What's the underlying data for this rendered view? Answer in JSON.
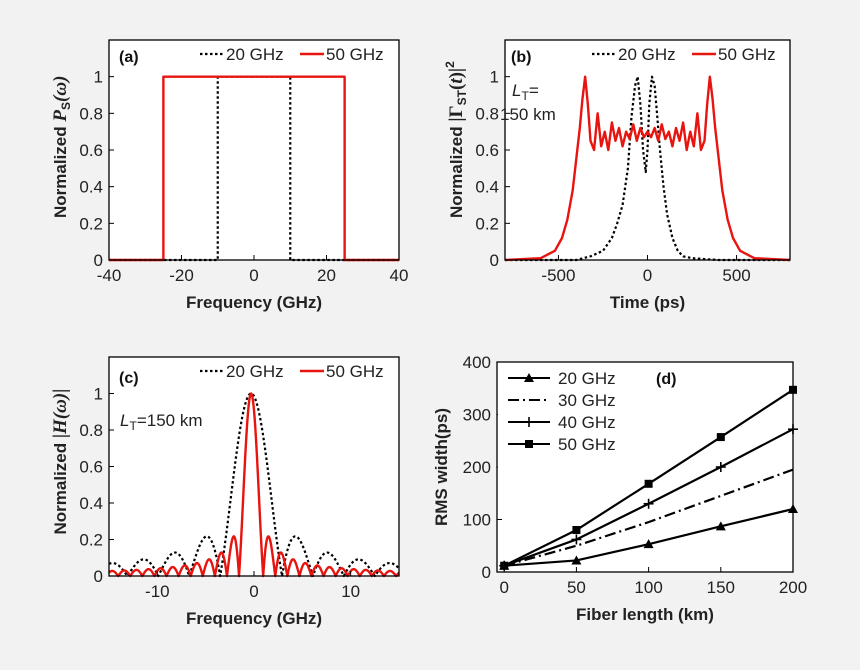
{
  "chart_data": [
    {
      "type": "line",
      "panel_label": "(a)",
      "title": "",
      "xlabel": "Frequency (GHz)",
      "ylabel_prefix": "Normalized",
      "ylabel_math": "P_S(ω)",
      "xlim": [
        -40,
        40
      ],
      "ylim": [
        0,
        1.2
      ],
      "xticks": [
        -40,
        -20,
        0,
        20,
        40
      ],
      "yticks": [
        0,
        0.2,
        0.4,
        0.6,
        0.8,
        1
      ],
      "legend": [
        "20 GHz",
        "50 GHz"
      ],
      "series": [
        {
          "name": "20 GHz",
          "style": "dotted",
          "color": "#000000",
          "x": [
            -40,
            -10,
            -10,
            10,
            10,
            40
          ],
          "y": [
            0,
            0,
            1,
            1,
            0,
            0
          ]
        },
        {
          "name": "50 GHz",
          "style": "solid",
          "color": "#e8140f",
          "x": [
            -40,
            -25,
            -25,
            25,
            25,
            40
          ],
          "y": [
            0,
            0,
            1,
            1,
            0,
            0
          ]
        }
      ]
    },
    {
      "type": "line",
      "panel_label": "(b)",
      "annotation_var": "L",
      "annotation_sub": "T",
      "annotation_rest": "=",
      "annotation_line2": "150 km",
      "xlabel": "Time (ps)",
      "ylabel_prefix": "Normalized",
      "ylabel_math": "|Γ_ST(t)|²",
      "xlim": [
        -800,
        800
      ],
      "ylim": [
        0,
        1.2
      ],
      "xticks": [
        -500,
        0,
        500
      ],
      "yticks": [
        0,
        0.2,
        0.4,
        0.6,
        0.8,
        1
      ],
      "legend": [
        "20 GHz",
        "50 GHz"
      ],
      "series": [
        {
          "name": "20 GHz",
          "style": "dotted",
          "color": "#000000",
          "x": [
            -800,
            -400,
            -320,
            -250,
            -200,
            -170,
            -140,
            -110,
            -90,
            -70,
            -55,
            -40,
            -25,
            -10,
            0,
            10,
            25,
            40,
            55,
            70,
            90,
            110,
            140,
            170,
            200,
            250,
            320,
            400,
            800
          ],
          "y": [
            0,
            0,
            0.02,
            0.05,
            0.12,
            0.2,
            0.3,
            0.5,
            0.78,
            0.95,
            1.0,
            0.85,
            0.6,
            0.48,
            0.6,
            0.85,
            1.0,
            0.95,
            0.78,
            0.6,
            0.4,
            0.25,
            0.12,
            0.05,
            0.02,
            0.01,
            0.005,
            0,
            0
          ]
        },
        {
          "name": "50 GHz",
          "style": "solid",
          "color": "#e8140f",
          "x": [
            -800,
            -600,
            -520,
            -480,
            -450,
            -420,
            -400,
            -380,
            -365,
            -350,
            -335,
            -320,
            -300,
            -280,
            -260,
            -240,
            -220,
            -200,
            -180,
            -160,
            -140,
            -120,
            -100,
            -80,
            -60,
            -40,
            -20,
            0,
            20,
            40,
            60,
            80,
            100,
            120,
            140,
            160,
            180,
            200,
            220,
            240,
            260,
            280,
            300,
            320,
            335,
            350,
            365,
            380,
            400,
            420,
            450,
            480,
            520,
            600,
            800
          ],
          "y": [
            0,
            0.01,
            0.05,
            0.12,
            0.22,
            0.38,
            0.55,
            0.72,
            0.88,
            1.0,
            0.85,
            0.65,
            0.6,
            0.8,
            0.62,
            0.7,
            0.6,
            0.75,
            0.65,
            0.72,
            0.62,
            0.7,
            0.66,
            0.74,
            0.65,
            0.72,
            0.67,
            0.7,
            0.67,
            0.72,
            0.65,
            0.74,
            0.66,
            0.7,
            0.62,
            0.72,
            0.65,
            0.75,
            0.6,
            0.7,
            0.62,
            0.8,
            0.6,
            0.65,
            0.85,
            1.0,
            0.88,
            0.72,
            0.55,
            0.38,
            0.22,
            0.12,
            0.05,
            0.01,
            0
          ]
        }
      ]
    },
    {
      "type": "line",
      "panel_label": "(c)",
      "annotation_var": "L",
      "annotation_sub": "T",
      "annotation_rest": "=150 km",
      "xlabel": "Frequency (GHz)",
      "ylabel_prefix": "Normalized",
      "ylabel_math": "|H(ω)|",
      "xlim": [
        -15,
        15
      ],
      "ylim": [
        0,
        1.2
      ],
      "xticks": [
        -10,
        0,
        10
      ],
      "yticks": [
        0,
        0.2,
        0.4,
        0.6,
        0.8,
        1
      ],
      "legend": [
        "20 GHz",
        "50 GHz"
      ],
      "series": [
        {
          "name": "20 GHz",
          "style": "dotted",
          "color": "#000000",
          "fn": "sinc",
          "width": 3.2,
          "center": -0.3
        },
        {
          "name": "50 GHz",
          "style": "solid",
          "color": "#e8140f",
          "fn": "sinc",
          "width": 1.25,
          "center": -0.3
        }
      ]
    },
    {
      "type": "line",
      "panel_label": "(d)",
      "xlabel": "Fiber length (km)",
      "ylabel": "RMS width(ps)",
      "xlim": [
        -5,
        200
      ],
      "ylim": [
        0,
        400
      ],
      "xticks": [
        0,
        50,
        100,
        150,
        200
      ],
      "yticks": [
        0,
        100,
        200,
        300,
        400
      ],
      "legend": [
        "20 GHz",
        "30 GHz",
        "40 GHz",
        "50 GHz"
      ],
      "x": [
        0,
        50,
        100,
        150,
        200
      ],
      "series": [
        {
          "name": "20 GHz",
          "style": "solid",
          "marker": "triangle",
          "values": [
            12,
            22,
            53,
            87,
            120
          ]
        },
        {
          "name": "30 GHz",
          "style": "dashdot",
          "marker": "none",
          "values": [
            12,
            50,
            95,
            145,
            195
          ]
        },
        {
          "name": "40 GHz",
          "style": "solid",
          "marker": "plus",
          "values": [
            12,
            62,
            130,
            200,
            272
          ]
        },
        {
          "name": "50 GHz",
          "style": "solid",
          "marker": "square",
          "values": [
            12,
            80,
            168,
            257,
            347
          ]
        }
      ]
    }
  ]
}
